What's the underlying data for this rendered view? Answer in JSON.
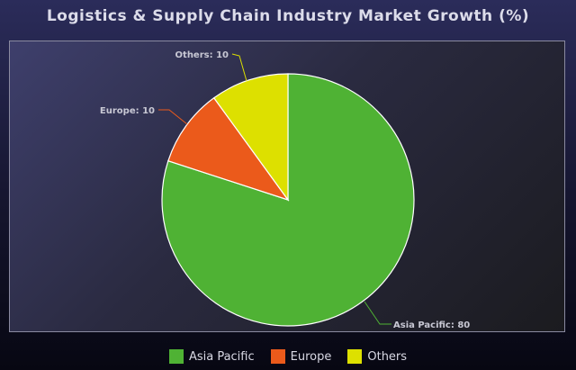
{
  "chart_data": {
    "type": "pie",
    "title": "Logistics & Supply Chain Industry Market Growth (%)",
    "categories": [
      "Asia Pacific",
      "Europe",
      "Others"
    ],
    "values": [
      80,
      10,
      10
    ],
    "colors": [
      "#4fb234",
      "#eb5a1b",
      "#dde000"
    ],
    "data_labels": [
      "Asia Pacific: 80",
      "Europe: 10",
      "Others: 10"
    ],
    "legend_placement": "bottom",
    "start_angle_deg": 0,
    "direction": "clockwise"
  }
}
